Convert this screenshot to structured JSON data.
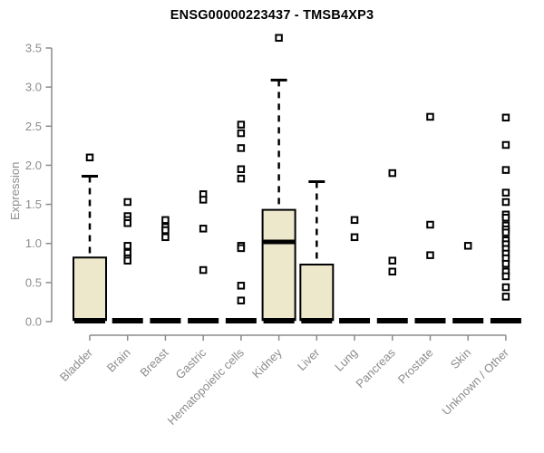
{
  "chart_data": {
    "type": "boxplot",
    "title": "ENSG00000223437 - TMSB4XP3",
    "ylabel": "Expression",
    "xlabel": "",
    "ylim": [
      0,
      3.5
    ],
    "yticks": [
      0.0,
      0.5,
      1.0,
      1.5,
      2.0,
      2.5,
      3.0,
      3.5
    ],
    "ytick_labels": [
      "0.0",
      "0.5",
      "1.0",
      "1.5",
      "2.0",
      "2.5",
      "3.0",
      "3.5"
    ],
    "grid": false,
    "legend": "none",
    "marker": "open-square",
    "colors": {
      "box_fill": "#EDE7CB",
      "box_stroke": "#000000",
      "axis": "#8C8C8C",
      "tick_text": "#8C8C8C",
      "title_text": "#000000",
      "outlier_fill": "#FFFFFF"
    },
    "categories": [
      "Bladder",
      "Brain",
      "Breast",
      "Gastric",
      "Hematopoietic cells",
      "Kidney",
      "Liver",
      "Lung",
      "Pancreas",
      "Prostate",
      "Skin",
      "Unknown / Other"
    ],
    "series": [
      {
        "category": "Bladder",
        "q1": 0.02,
        "median": 0.02,
        "q3": 0.82,
        "whisker_high": 1.86,
        "outliers": [
          2.1
        ]
      },
      {
        "category": "Brain",
        "q1": 0.02,
        "median": 0.02,
        "q3": 0.02,
        "whisker_high": null,
        "outliers": [
          1.53,
          1.35,
          1.3,
          1.26,
          0.97,
          0.88,
          0.81,
          0.78
        ]
      },
      {
        "category": "Breast",
        "q1": 0.02,
        "median": 0.02,
        "q3": 0.02,
        "whisker_high": null,
        "outliers": [
          1.3,
          1.21,
          1.17,
          1.08
        ]
      },
      {
        "category": "Gastric",
        "q1": 0.02,
        "median": 0.02,
        "q3": 0.02,
        "whisker_high": null,
        "outliers": [
          1.63,
          1.56,
          1.19,
          0.66
        ]
      },
      {
        "category": "Hematopoietic cells",
        "q1": 0.02,
        "median": 0.02,
        "q3": 0.02,
        "whisker_high": null,
        "outliers": [
          2.52,
          2.41,
          2.22,
          1.95,
          1.83,
          0.97,
          0.94,
          0.46,
          0.27
        ]
      },
      {
        "category": "Kidney",
        "q1": 0.02,
        "median": 1.02,
        "q3": 1.43,
        "whisker_high": 3.09,
        "outliers": [
          3.63
        ]
      },
      {
        "category": "Liver",
        "q1": 0.02,
        "median": 0.03,
        "q3": 0.73,
        "whisker_high": 1.79,
        "outliers": []
      },
      {
        "category": "Lung",
        "q1": 0.02,
        "median": 0.02,
        "q3": 0.02,
        "whisker_high": null,
        "outliers": [
          1.3,
          1.08
        ]
      },
      {
        "category": "Pancreas",
        "q1": 0.02,
        "median": 0.02,
        "q3": 0.02,
        "whisker_high": null,
        "outliers": [
          1.9,
          0.78,
          0.64
        ]
      },
      {
        "category": "Prostate",
        "q1": 0.02,
        "median": 0.02,
        "q3": 0.02,
        "whisker_high": null,
        "outliers": [
          2.62,
          1.24,
          0.85
        ]
      },
      {
        "category": "Skin",
        "q1": 0.02,
        "median": 0.02,
        "q3": 0.02,
        "whisker_high": null,
        "outliers": [
          0.97
        ]
      },
      {
        "category": "Unknown / Other",
        "q1": 0.02,
        "median": 0.02,
        "q3": 0.02,
        "whisker_high": null,
        "outliers": [
          2.61,
          2.26,
          1.94,
          1.65,
          1.53,
          1.37,
          1.33,
          1.23,
          1.18,
          1.14,
          1.04,
          0.99,
          0.93,
          0.87,
          0.81,
          0.74,
          0.64,
          0.58,
          0.44,
          0.32
        ]
      }
    ]
  }
}
